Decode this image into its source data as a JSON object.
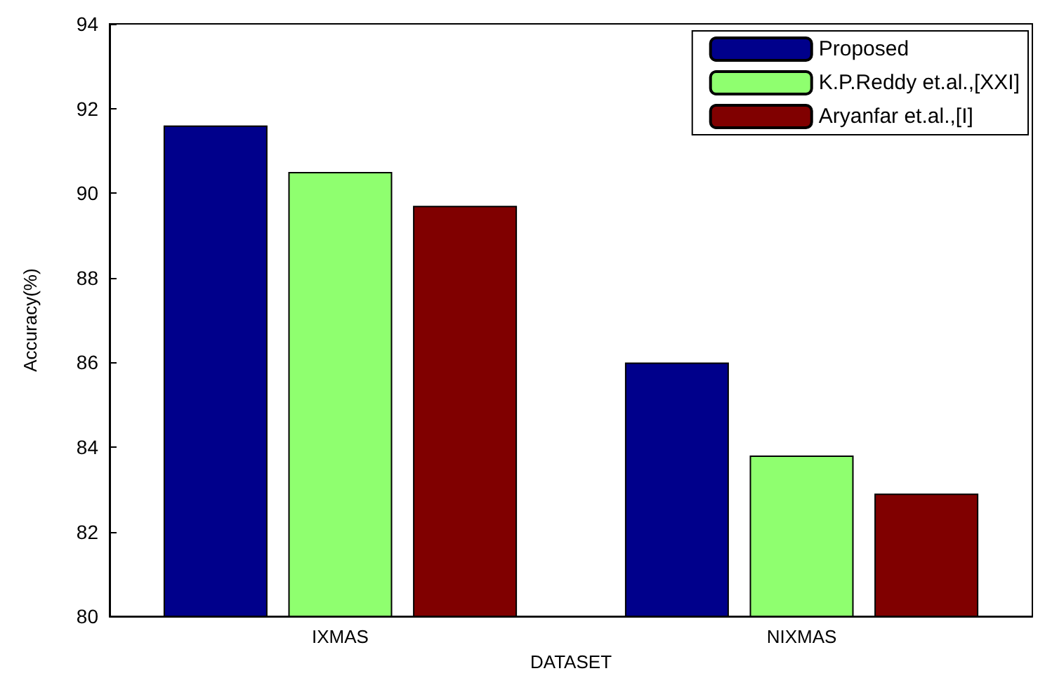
{
  "chart_data": {
    "type": "bar",
    "xlabel": "DATASET",
    "ylabel": "Accuracy(%)",
    "categories": [
      "IXMAS",
      "NIXMAS"
    ],
    "series": [
      {
        "name": "Proposed",
        "color": "#00008b",
        "values": [
          91.6,
          86.0
        ]
      },
      {
        "name": "K.P.Reddy et.al.,[XXI]",
        "color": "#8fff6f",
        "values": [
          90.5,
          83.8
        ]
      },
      {
        "name": "Aryanfar et.al.,[I]",
        "color": "#800000",
        "values": [
          89.7,
          82.9
        ]
      }
    ],
    "ylim": [
      80,
      94
    ],
    "yticks": [
      80,
      82,
      84,
      86,
      88,
      90,
      92,
      94
    ],
    "grid": false,
    "legend": "top right"
  }
}
